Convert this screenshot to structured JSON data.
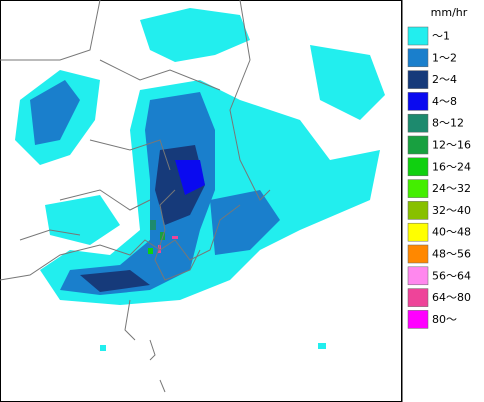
{
  "legend": {
    "unit": "mm/hr",
    "items": [
      {
        "label": "～1",
        "color": "#22eeee"
      },
      {
        "label": "1～2",
        "color": "#1a7fcc"
      },
      {
        "label": "2～4",
        "color": "#163a7a"
      },
      {
        "label": "4～8",
        "color": "#0a0af0"
      },
      {
        "label": "8～12",
        "color": "#1d8a6e"
      },
      {
        "label": "12～16",
        "color": "#18a040"
      },
      {
        "label": "16～24",
        "color": "#10d010"
      },
      {
        "label": "24～32",
        "color": "#44ee00"
      },
      {
        "label": "32～40",
        "color": "#88c000"
      },
      {
        "label": "40～48",
        "color": "#ffff00"
      },
      {
        "label": "48～56",
        "color": "#ff8800"
      },
      {
        "label": "56～64",
        "color": "#ff88ee"
      },
      {
        "label": "64～80",
        "color": "#ee4499"
      },
      {
        "label": "80～",
        "color": "#ff00ff"
      }
    ]
  }
}
